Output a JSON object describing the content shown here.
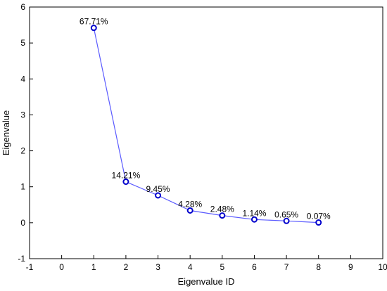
{
  "chart_data": {
    "type": "line",
    "title": "",
    "xlabel": "Eigenvalue ID",
    "ylabel": "Eigenvalue",
    "xlim": [
      -1,
      10
    ],
    "ylim": [
      -1,
      6
    ],
    "xticks": [
      -1,
      0,
      1,
      2,
      3,
      4,
      5,
      6,
      7,
      8,
      9,
      10
    ],
    "yticks": [
      -1,
      0,
      1,
      2,
      3,
      4,
      5,
      6
    ],
    "grid": false,
    "legend": "none",
    "line_color": "#5b5bff",
    "marker_color": "#0000cc",
    "series": [
      {
        "x": [
          1,
          2,
          3,
          4,
          5,
          6,
          7,
          8
        ],
        "y": [
          5.42,
          1.14,
          0.76,
          0.34,
          0.2,
          0.09,
          0.05,
          0.006
        ],
        "labels": [
          "67.71%",
          "14.21%",
          "9.45%",
          "4.28%",
          "2.48%",
          "1.14%",
          "0.65%",
          "0.07%"
        ]
      }
    ]
  }
}
